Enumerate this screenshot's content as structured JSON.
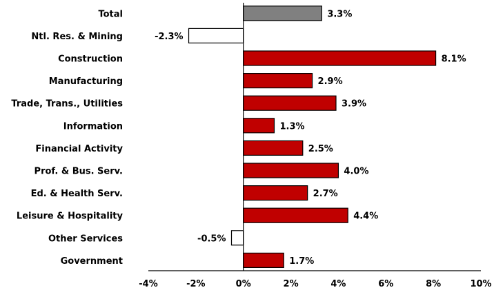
{
  "chart_data": {
    "type": "bar",
    "orientation": "horizontal",
    "categories": [
      "Total",
      "Ntl. Res. & Mining",
      "Construction",
      "Manufacturing",
      "Trade, Trans., Utilities",
      "Information",
      "Financial Activity",
      "Prof. & Bus. Serv.",
      "Ed. & Health Serv.",
      "Leisure & Hospitality",
      "Other Services",
      "Government"
    ],
    "values": [
      3.3,
      -2.3,
      8.1,
      2.9,
      3.9,
      1.3,
      2.5,
      4.0,
      2.7,
      4.4,
      -0.5,
      1.7
    ],
    "value_labels": [
      "3.3%",
      "-2.3%",
      "8.1%",
      "2.9%",
      "3.9%",
      "1.3%",
      "2.5%",
      "4.0%",
      "2.7%",
      "4.4%",
      "-0.5%",
      "1.7%"
    ],
    "xlim": [
      -4,
      10
    ],
    "xticks": [
      -4,
      -2,
      0,
      2,
      4,
      6,
      8,
      10
    ],
    "xtick_labels": [
      "-4%",
      "-2%",
      "0%",
      "2%",
      "4%",
      "6%",
      "8%",
      "10%"
    ],
    "title": "",
    "xlabel": "",
    "ylabel": "",
    "grid": false,
    "colors": {
      "total": "#808080",
      "positive": "#c00000",
      "negative": "#ffffff",
      "outline": "#000000"
    }
  }
}
